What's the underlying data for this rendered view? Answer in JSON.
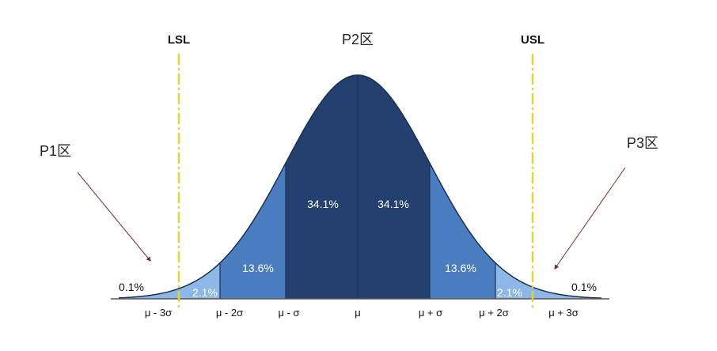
{
  "limits": {
    "lsl_label": "LSL",
    "usl_label": "USL"
  },
  "zones": {
    "p1": "P1区",
    "p2": "P2区",
    "p3": "P3区"
  },
  "areas": {
    "left_tail": "0.1%",
    "left_2_3": "2.1%",
    "left_1_2": "13.6%",
    "left_0_1": "34.1%",
    "right_0_1": "34.1%",
    "right_1_2": "13.6%",
    "right_2_3": "2.1%",
    "right_tail": "0.1%"
  },
  "ticks": [
    "μ - 3σ",
    "μ - 2σ",
    "μ - σ",
    "μ",
    "μ + σ",
    "μ + 2σ",
    "μ + 3σ"
  ],
  "colors": {
    "center": "#24406f",
    "inner": "#4a7cc0",
    "outer": "#8cb7e6",
    "limit_line": "#e3d33a",
    "arrow": "#7a2a2a"
  }
}
